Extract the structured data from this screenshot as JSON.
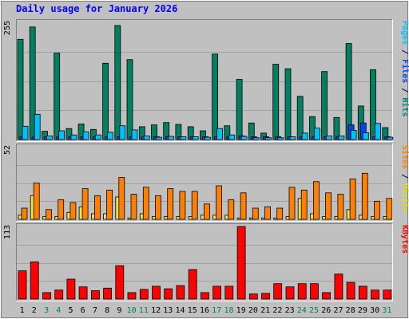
{
  "chart_data": [
    {
      "type": "bar",
      "title": "Daily usage for January 2026",
      "categories": [
        "1",
        "2",
        "3",
        "4",
        "5",
        "6",
        "7",
        "8",
        "9",
        "10",
        "11",
        "12",
        "13",
        "14",
        "15",
        "16",
        "17",
        "18",
        "19",
        "20",
        "21",
        "22",
        "23",
        "24",
        "25",
        "26",
        "27",
        "28",
        "29",
        "30",
        "31"
      ],
      "weekend_days": [
        "3",
        "4",
        "10",
        "11",
        "17",
        "18",
        "24",
        "25",
        "31"
      ],
      "ymax_label": "255",
      "ylim": [
        0,
        255
      ],
      "axis_labels": [
        {
          "text": "Pages",
          "color": "#00c0ff"
        },
        {
          "text": " / ",
          "color": "#000080"
        },
        {
          "text": "Files",
          "color": "#0040ff"
        },
        {
          "text": " / ",
          "color": "#000080"
        },
        {
          "text": "Hits",
          "color": "#008070"
        }
      ],
      "series": [
        {
          "name": "Hits",
          "color": "#008060",
          "values": [
            218,
            245,
            18,
            188,
            24,
            34,
            22,
            166,
            248,
            174,
            28,
            32,
            37,
            33,
            28,
            19,
            186,
            30,
            131,
            36,
            14,
            164,
            154,
            94,
            50,
            148,
            48,
            209,
            73,
            152,
            26
          ]
        },
        {
          "name": "Files",
          "color": "#0040ff",
          "values": [
            6,
            6,
            6,
            6,
            6,
            6,
            6,
            6,
            6,
            6,
            6,
            6,
            6,
            6,
            6,
            6,
            6,
            6,
            8,
            6,
            6,
            6,
            6,
            6,
            6,
            6,
            6,
            32,
            36,
            6,
            6
          ]
        },
        {
          "name": "Pages",
          "color": "#00c0ff",
          "values": [
            29,
            55,
            8,
            19,
            10,
            17,
            10,
            16,
            30,
            21,
            8,
            5,
            7,
            6,
            6,
            5,
            24,
            10,
            7,
            4,
            4,
            4,
            6,
            14,
            25,
            8,
            8,
            20,
            15,
            35,
            5
          ]
        }
      ]
    },
    {
      "type": "bar",
      "ymax_label": "52",
      "ylim": [
        0,
        52
      ],
      "axis_labels": [
        {
          "text": "Sites",
          "color": "#ff8000"
        },
        {
          "text": " / ",
          "color": "#000080"
        },
        {
          "text": "Visits",
          "color": "#e0e000"
        }
      ],
      "series": [
        {
          "name": "Visits",
          "color": "#f0e040",
          "values": [
            3,
            17,
            2,
            2,
            5,
            9,
            4,
            4,
            16,
            1,
            4,
            2,
            2,
            2,
            2,
            3,
            3,
            3,
            1,
            1,
            1,
            1,
            2,
            15,
            4,
            2,
            2,
            7,
            3,
            2,
            2
          ]
        },
        {
          "name": "Sites",
          "color": "#ff8000",
          "values": [
            8,
            26,
            7,
            14,
            12,
            22,
            17,
            21,
            30,
            18,
            23,
            17,
            22,
            20,
            20,
            11,
            24,
            14,
            19,
            8,
            9,
            8,
            23,
            21,
            27,
            19,
            18,
            29,
            33,
            13,
            15
          ]
        }
      ]
    },
    {
      "type": "bar",
      "ymax_label": "113",
      "ylim": [
        0,
        113
      ],
      "axis_labels": [
        {
          "text": "KBytes",
          "color": "#ff0000"
        }
      ],
      "series": [
        {
          "name": "KBytes",
          "color": "#ff0000",
          "values": [
            44,
            58,
            10,
            14,
            31,
            19,
            13,
            17,
            52,
            10,
            15,
            20,
            16,
            21,
            46,
            10,
            20,
            20,
            113,
            8,
            9,
            24,
            19,
            24,
            24,
            10,
            39,
            26,
            20,
            14,
            14
          ]
        }
      ]
    }
  ]
}
